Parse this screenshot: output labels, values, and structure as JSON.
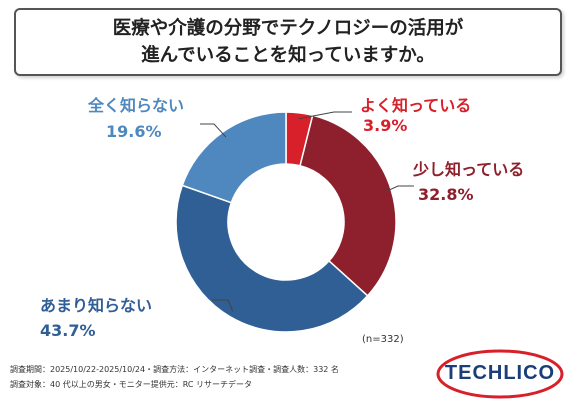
{
  "title": {
    "line1": "医療や介護の分野でテクノロジーの活用が",
    "line2": "進んでいることを知っていますか。"
  },
  "chart_data": {
    "type": "pie",
    "donut": true,
    "start_angle_deg": 0,
    "direction": "clockwise",
    "slices": [
      {
        "name": "よく知っている",
        "value": 3.9,
        "value_label": "3.9%",
        "color": "#d7202a",
        "label_color": "#d7202a"
      },
      {
        "name": "少し知っている",
        "value": 32.8,
        "value_label": "32.8%",
        "color": "#8e1f2c",
        "label_color": "#8e1f2c"
      },
      {
        "name": "あまり知らない",
        "value": 43.7,
        "value_label": "43.7%",
        "color": "#2f5f94",
        "label_color": "#2f5f94"
      },
      {
        "name": "全く知らない",
        "value": 19.6,
        "value_label": "19.6%",
        "color": "#4f88bf",
        "label_color": "#4f88bf"
      }
    ]
  },
  "sample_size": "(n=332)",
  "footer": {
    "line1": "調査期間：2025/10/22-2025/10/24・調査方法：インターネット調査・調査人数：332 名",
    "line2": "調査対象：40 代以上の男女・モニター提供元：RC リサーチデータ"
  },
  "logo": {
    "text": "TECHLICO",
    "ring_color": "#d7202a",
    "text_color": "#1b3d7a"
  }
}
